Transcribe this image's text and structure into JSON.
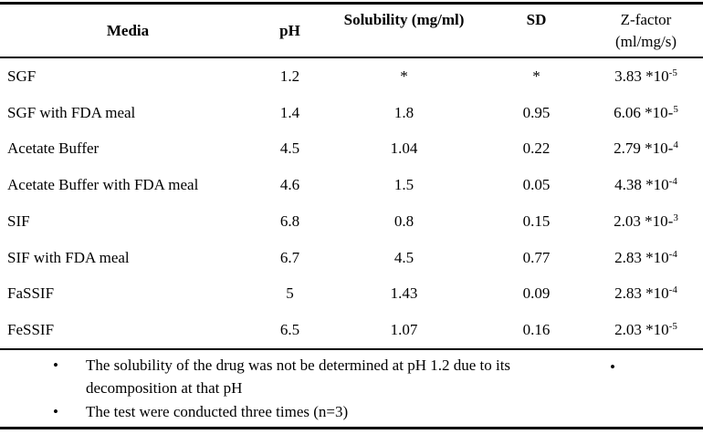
{
  "colors": {
    "text": "#000000",
    "background": "#ffffff",
    "rule": "#000000"
  },
  "table": {
    "header": {
      "media": "Media",
      "ph": "pH",
      "solubility": "Solubility (mg/ml)",
      "sd": "SD",
      "zfactor_line1": "Z-factor",
      "zfactor_line2": "(ml/mg/s)"
    },
    "rows": [
      {
        "media": "SGF",
        "ph": "1.2",
        "solubility": "*",
        "sd": "*",
        "z_base": "3.83 *10",
        "z_sup": "-5"
      },
      {
        "media": "SGF with FDA meal",
        "ph": "1.4",
        "solubility": "1.8",
        "sd": "0.95",
        "z_base": "6.06 *10-",
        "z_sup": "5"
      },
      {
        "media": "Acetate Buffer",
        "ph": "4.5",
        "solubility": "1.04",
        "sd": "0.22",
        "z_base": "2.79 *10-",
        "z_sup": "4"
      },
      {
        "media": "Acetate Buffer with FDA meal",
        "ph": "4.6",
        "solubility": "1.5",
        "sd": "0.05",
        "z_base": "4.38 *10",
        "z_sup": "-4"
      },
      {
        "media": "SIF",
        "ph": "6.8",
        "solubility": "0.8",
        "sd": "0.15",
        "z_base": "2.03 *10-",
        "z_sup": "3"
      },
      {
        "media": "SIF with FDA meal",
        "ph": "6.7",
        "solubility": "4.5",
        "sd": "0.77",
        "z_base": "2.83 *10",
        "z_sup": "-4"
      },
      {
        "media": "FaSSIF",
        "ph": "5",
        "solubility": "1.43",
        "sd": "0.09",
        "z_base": "2.83 *10",
        "z_sup": "-4"
      },
      {
        "media": "FeSSIF",
        "ph": "6.5",
        "solubility": "1.07",
        "sd": "0.16",
        "z_base": "2.03 *10",
        "z_sup": "-5"
      }
    ]
  },
  "footnotes": {
    "bullet": "•",
    "right_bullet": "•",
    "items": [
      "The solubility of the drug was not be determined at pH 1.2 due to its decomposition at that pH",
      "The test were conducted three times (n=3)"
    ]
  }
}
